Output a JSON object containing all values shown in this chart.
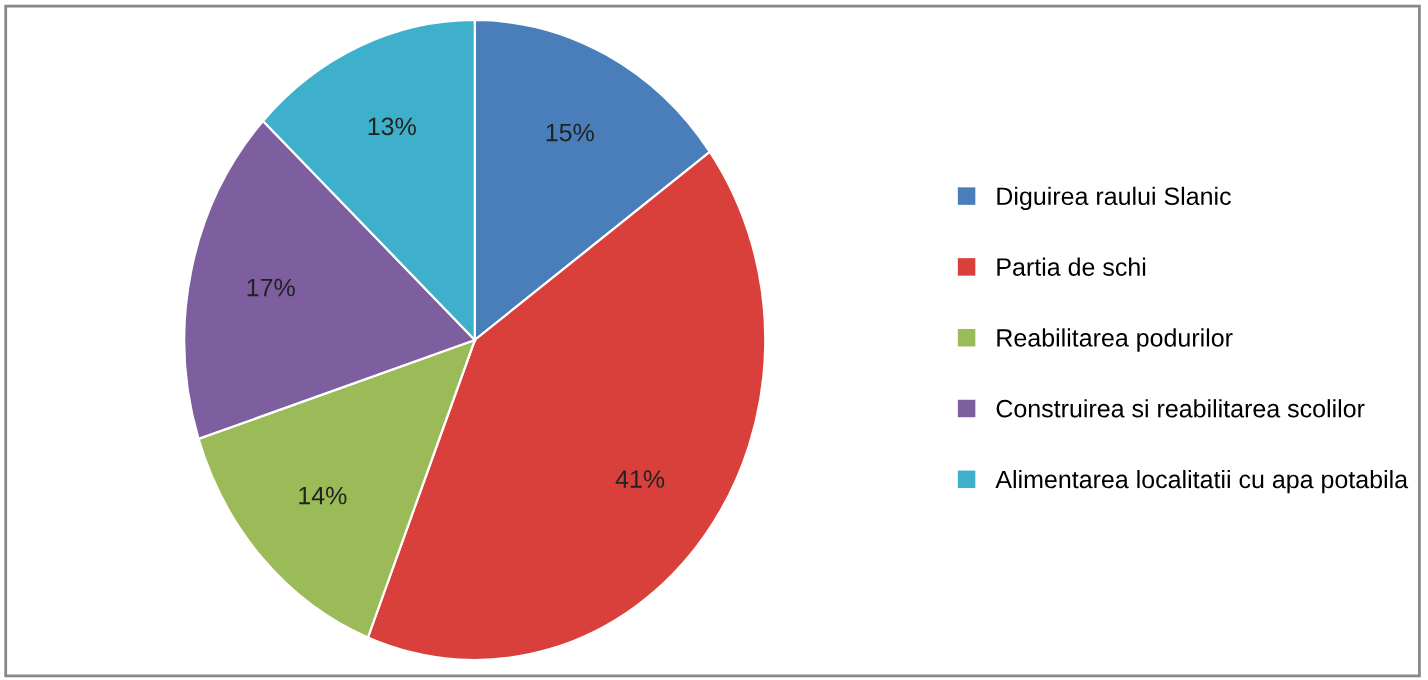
{
  "chart_data": {
    "type": "pie",
    "categories": [
      "Diguirea raului Slanic",
      "Partia de schi",
      "Reabilitarea podurilor",
      "Construirea si reabilitarea scolilor",
      "Alimentarea localitatii cu apa potabila"
    ],
    "values": [
      15,
      41,
      14,
      17,
      13
    ],
    "colors": [
      "#4a7ebb",
      "#d9403b",
      "#9bbb59",
      "#7d5fa0",
      "#3fb0cc"
    ],
    "value_labels": [
      "15%",
      "41%",
      "14%",
      "17%",
      "13%"
    ],
    "legend": "right"
  }
}
